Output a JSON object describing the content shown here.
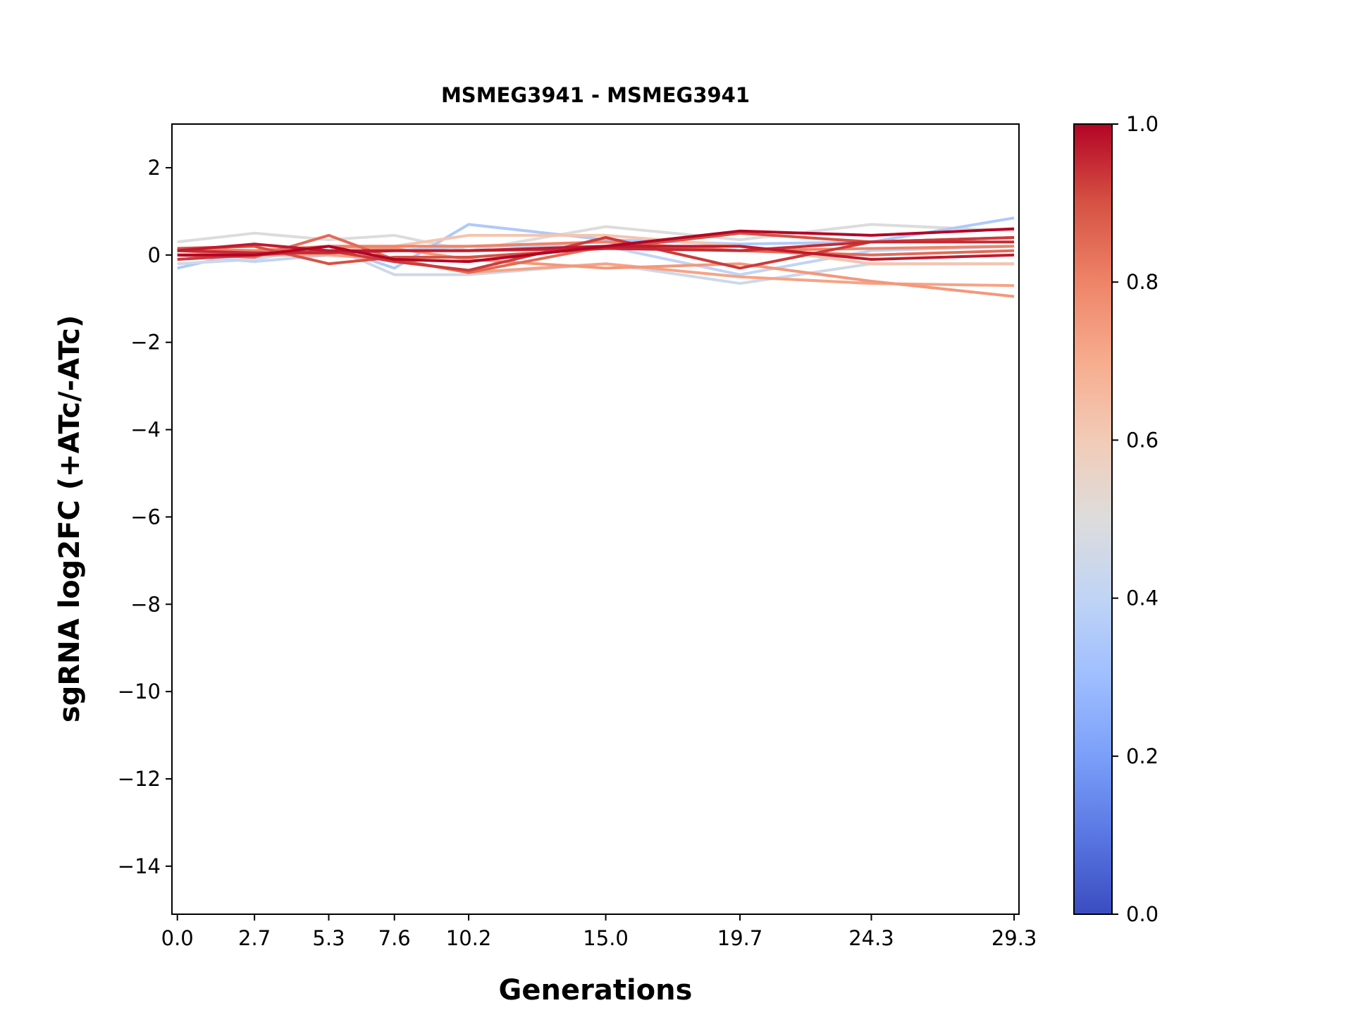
{
  "chart_data": {
    "type": "line",
    "title": "MSMEG3941 - MSMEG3941",
    "xlabel": "Generations",
    "ylabel": "sgRNA log2FC (+ATc/-ATc)",
    "x": [
      0.0,
      2.7,
      5.3,
      7.6,
      10.2,
      15.0,
      19.7,
      24.3,
      29.3
    ],
    "x_tick_labels": [
      "0.0",
      "2.7",
      "5.3",
      "7.6",
      "10.2",
      "15.0",
      "19.7",
      "24.3",
      "29.3"
    ],
    "xlim": [
      -0.19,
      29.47
    ],
    "ylim": [
      -15.1,
      3
    ],
    "y_ticks": [
      2,
      0,
      -2,
      -4,
      -6,
      -8,
      -10,
      -12,
      -14
    ],
    "y_tick_labels": [
      "2",
      "0",
      "−2",
      "−4",
      "−6",
      "−8",
      "−10",
      "−12",
      "−14"
    ],
    "grid": false,
    "colormap": "coolwarm",
    "colorbar": {
      "range": [
        0.0,
        1.0
      ],
      "ticks": [
        0.0,
        0.2,
        0.4,
        0.6,
        0.8,
        1.0
      ],
      "tick_labels": [
        "0.0",
        "0.2",
        "0.4",
        "0.6",
        "0.8",
        "1.0"
      ],
      "stops": [
        "#3b4cc0",
        "#5977e3",
        "#7b9ff9",
        "#9ebeff",
        "#c0d4f5",
        "#dddcdc",
        "#f2cbb7",
        "#f7ac8e",
        "#ee8468",
        "#d65244",
        "#b40426"
      ]
    },
    "series": [
      {
        "c": 0.5,
        "values": [
          0.3,
          0.5,
          0.35,
          0.45,
          0.1,
          0.65,
          0.35,
          0.7,
          0.55
        ]
      },
      {
        "c": 0.35,
        "values": [
          -0.3,
          0.1,
          0.2,
          -0.3,
          0.7,
          0.35,
          0.25,
          0.3,
          0.85
        ]
      },
      {
        "c": 0.45,
        "values": [
          -0.2,
          -0.1,
          0.2,
          -0.45,
          -0.45,
          -0.2,
          -0.65,
          -0.2,
          -0.2
        ]
      },
      {
        "c": 0.4,
        "values": [
          0.0,
          -0.15,
          0.0,
          0.1,
          0.2,
          0.2,
          -0.45,
          0.1,
          0.2
        ]
      },
      {
        "c": 0.62,
        "values": [
          0.1,
          0.0,
          0.2,
          0.2,
          0.45,
          0.45,
          0.2,
          -0.2,
          -0.2
        ]
      },
      {
        "c": 0.72,
        "values": [
          0.0,
          0.0,
          0.0,
          -0.1,
          -0.4,
          -0.2,
          -0.5,
          -0.65,
          -0.7
        ]
      },
      {
        "c": 0.75,
        "values": [
          0.1,
          0.0,
          0.2,
          0.15,
          -0.1,
          -0.3,
          -0.2,
          -0.6,
          -0.95
        ]
      },
      {
        "c": 0.8,
        "values": [
          0.15,
          0.1,
          0.2,
          0.2,
          0.2,
          0.3,
          0.1,
          0.15,
          0.2
        ]
      },
      {
        "c": 0.85,
        "values": [
          0.0,
          -0.05,
          0.45,
          -0.1,
          -0.4,
          0.2,
          0.1,
          0.0,
          0.1
        ]
      },
      {
        "c": 0.9,
        "values": [
          0.15,
          0.2,
          -0.2,
          -0.05,
          -0.05,
          0.15,
          0.5,
          0.3,
          0.4
        ]
      },
      {
        "c": 0.93,
        "values": [
          -0.1,
          0.0,
          0.1,
          -0.15,
          -0.35,
          0.4,
          -0.3,
          0.3,
          0.4
        ]
      },
      {
        "c": 0.95,
        "values": [
          0.1,
          0.05,
          0.05,
          0.1,
          0.1,
          0.15,
          0.1,
          0.3,
          0.3
        ]
      },
      {
        "c": 0.97,
        "values": [
          0.1,
          0.25,
          0.1,
          0.1,
          0.1,
          0.2,
          0.2,
          -0.1,
          0.0
        ]
      },
      {
        "c": 1.0,
        "values": [
          0.0,
          0.0,
          0.2,
          -0.1,
          -0.15,
          0.2,
          0.55,
          0.45,
          0.6
        ]
      }
    ]
  }
}
